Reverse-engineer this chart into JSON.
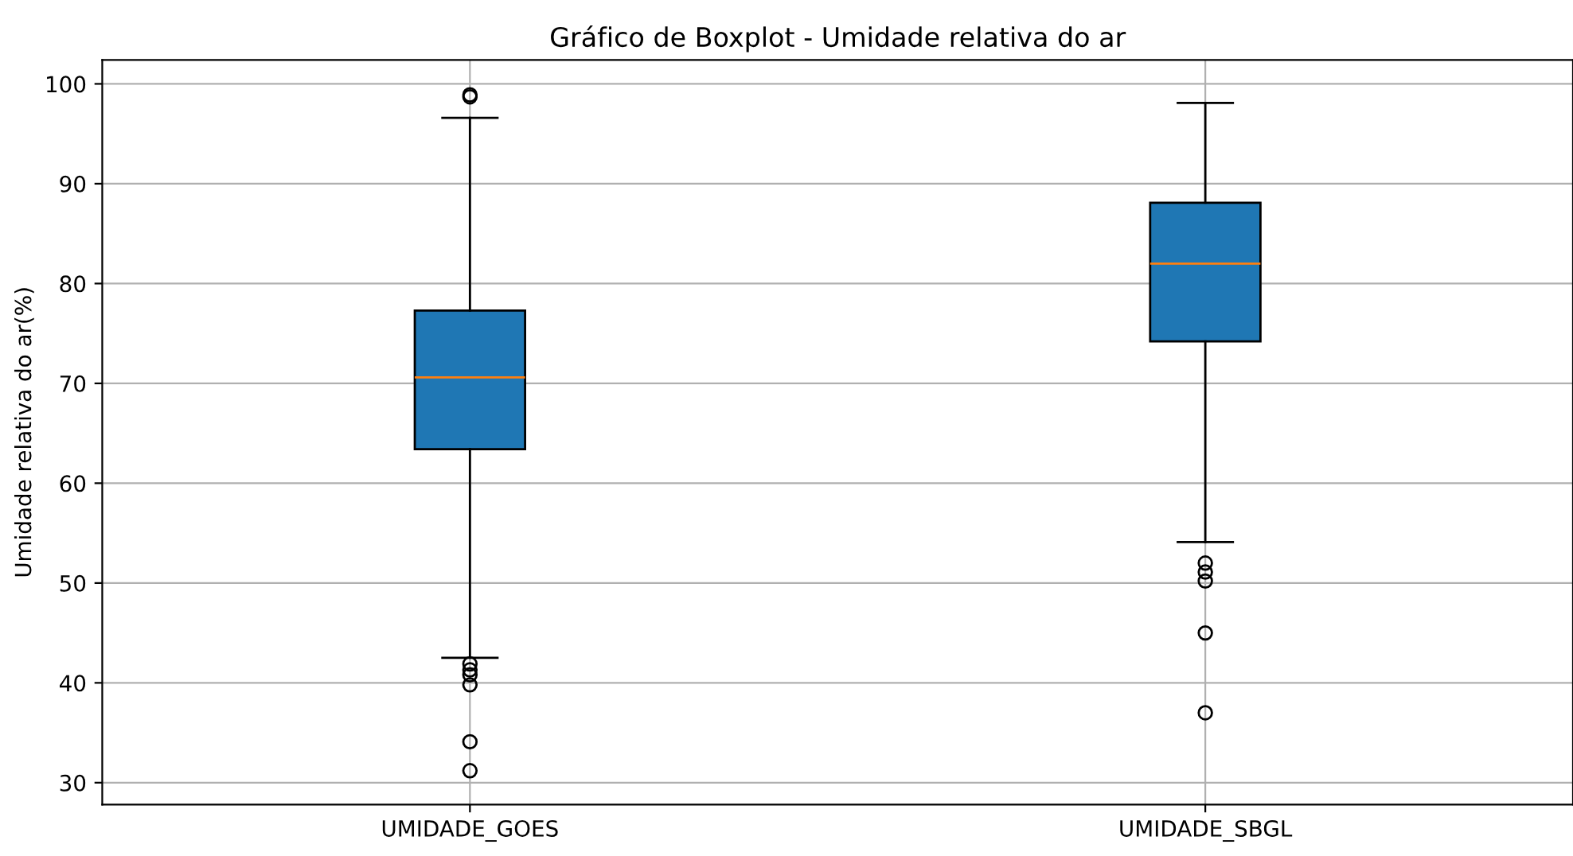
{
  "chart_data": {
    "type": "box",
    "title": "Gráfico de Boxplot - Umidade relativa do ar",
    "ylabel": "Umidade relativa do ar(%)",
    "categories": [
      "UMIDADE_GOES",
      "UMIDADE_SBGL"
    ],
    "boxes": [
      {
        "low": 42.5,
        "q1": 63.4,
        "median": 70.6,
        "q3": 77.3,
        "high": 96.6,
        "outliers": [
          98.9,
          98.7,
          41.9,
          41.3,
          40.8,
          39.8,
          34.1,
          31.2
        ]
      },
      {
        "low": 54.1,
        "q1": 74.2,
        "median": 82.0,
        "q3": 88.1,
        "high": 98.1,
        "outliers": [
          52.0,
          51.1,
          50.2,
          45.0,
          37.0
        ]
      }
    ],
    "color": "#1f77b4",
    "ylim": [
      27.8,
      102.4
    ],
    "yticks": [
      30,
      40,
      50,
      60,
      70,
      80,
      90,
      100
    ],
    "grid": true
  }
}
